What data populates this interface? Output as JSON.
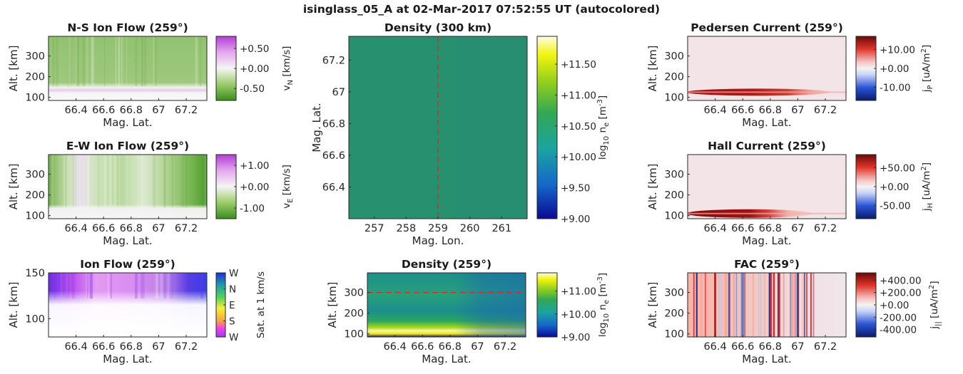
{
  "figure_title": "isinglass_05_A at 02-Mar-2017 07:52:55 UT (autocolored)",
  "chart_data": [
    {
      "id": "ns-ion-flow",
      "type": "heatmap",
      "title": "N-S Ion Flow (259°)",
      "xlabel": "Mag. Lat.",
      "ylabel": "Alt. [km]",
      "xlim": [
        66.2,
        67.35
      ],
      "ylim": [
        85,
        395
      ],
      "xticks": [
        66.4,
        66.6,
        66.8,
        67,
        67.2
      ],
      "xtick_labels": [
        "66.4",
        "66.6",
        "66.8",
        "67",
        "67.2"
      ],
      "yticks": [
        100,
        200,
        300
      ],
      "ytick_labels": [
        "100",
        "200",
        "300"
      ],
      "colorbar": {
        "label": "v_N [km/s]",
        "label_main": "v",
        "label_sub": "N",
        "label_unit": " [km/s]",
        "colormap": "PiYG",
        "limits": [
          -0.8,
          0.8
        ],
        "ticks": [
          0.5,
          0.0,
          -0.5
        ],
        "tick_labels": [
          "+0.50",
          "+0.00",
          "-0.50"
        ]
      }
    },
    {
      "id": "ew-ion-flow",
      "type": "heatmap",
      "title": "E-W Ion Flow (259°)",
      "xlabel": "Mag. Lat.",
      "ylabel": "Alt. [km]",
      "xlim": [
        66.2,
        67.35
      ],
      "ylim": [
        85,
        395
      ],
      "xticks": [
        66.4,
        66.6,
        66.8,
        67,
        67.2
      ],
      "xtick_labels": [
        "66.4",
        "66.6",
        "66.8",
        "67",
        "67.2"
      ],
      "yticks": [
        100,
        200,
        300
      ],
      "ytick_labels": [
        "100",
        "200",
        "300"
      ],
      "colorbar": {
        "label": "v_E [km/s]",
        "label_main": "v",
        "label_sub": "E",
        "label_unit": " [km/s]",
        "colormap": "PiYG",
        "limits": [
          -1.5,
          1.5
        ],
        "ticks": [
          1.0,
          0.0,
          -1.0
        ],
        "tick_labels": [
          "+1.00",
          "+0.00",
          "-1.00"
        ]
      }
    },
    {
      "id": "ion-flow",
      "type": "heatmap",
      "title": "Ion Flow (259°)",
      "xlabel": "Mag. Lat.",
      "ylabel": "Alt. [km]",
      "xlim": [
        66.2,
        67.35
      ],
      "ylim": [
        80,
        150
      ],
      "xticks": [
        66.4,
        66.6,
        66.8,
        67,
        67.2
      ],
      "xtick_labels": [
        "66.4",
        "66.6",
        "66.8",
        "67",
        "67.2"
      ],
      "yticks": [
        100,
        150
      ],
      "ytick_labels": [
        "100",
        "150"
      ],
      "colorbar": {
        "label": "Sat. at 1 km/s",
        "colormap": "direction-cyclic",
        "limits": [
          0,
          4
        ],
        "ticks": [
          4,
          3,
          2,
          1,
          0
        ],
        "tick_labels": [
          "W",
          "N",
          "E",
          "S",
          "W"
        ]
      }
    },
    {
      "id": "density-300km",
      "type": "heatmap",
      "title": "Density (300 km)",
      "xlabel": "Mag. Lon.",
      "ylabel": "Mag. Lat.",
      "xlim": [
        256.2,
        261.8
      ],
      "ylim": [
        66.2,
        67.35
      ],
      "xticks": [
        257,
        258,
        259,
        260,
        261
      ],
      "xtick_labels": [
        "257",
        "258",
        "259",
        "260",
        "261"
      ],
      "yticks": [
        66.4,
        66.6,
        66.8,
        67,
        67.2
      ],
      "ytick_labels": [
        "66.4",
        "66.6",
        "66.8",
        "67",
        "67.2"
      ],
      "reference_line": {
        "axis": "x",
        "value": 259,
        "style": "dashed",
        "color": "#d62728"
      },
      "colorbar": {
        "label": "log10 ne [m-3]",
        "label_main": "log",
        "label_sub": "10",
        "label_unit": " n",
        "label_sub2": "e",
        "label_unit2": " [m",
        "label_sup": "-3",
        "label_end": "]",
        "colormap": "viridis",
        "limits": [
          9.0,
          11.95
        ],
        "ticks": [
          11.5,
          11.0,
          10.5,
          10.0,
          9.5,
          9.0
        ],
        "tick_labels": [
          "+11.50",
          "+11.00",
          "+10.50",
          "+10.00",
          "+9.50",
          "+9.00"
        ]
      }
    },
    {
      "id": "density-259",
      "type": "heatmap",
      "title": "Density (259°)",
      "xlabel": "Mag. Lat.",
      "ylabel": "Alt. [km]",
      "xlim": [
        66.2,
        67.35
      ],
      "ylim": [
        85,
        395
      ],
      "xticks": [
        66.4,
        66.6,
        66.8,
        67,
        67.2
      ],
      "xtick_labels": [
        "66.4",
        "66.6",
        "66.8",
        "67",
        "67.2"
      ],
      "yticks": [
        100,
        200,
        300
      ],
      "ytick_labels": [
        "100",
        "200",
        "300"
      ],
      "reference_line": {
        "axis": "y",
        "value": 300,
        "style": "dashed",
        "color": "#d62728"
      },
      "colorbar": {
        "label": "log10 ne [m-3]",
        "label_main": "log",
        "label_sub": "10",
        "label_unit": " n",
        "label_sub2": "e",
        "label_unit2": " [m",
        "label_sup": "-3",
        "label_end": "]",
        "colormap": "viridis",
        "limits": [
          9.0,
          11.8
        ],
        "ticks": [
          11.0,
          10.0,
          9.0
        ],
        "tick_labels": [
          "+11.00",
          "+10.00",
          "+9.00"
        ]
      }
    },
    {
      "id": "pedersen-current",
      "type": "heatmap",
      "title": "Pedersen Current (259°)",
      "xlabel": "Mag. Lat.",
      "ylabel": "Alt. [km]",
      "xlim": [
        66.2,
        67.35
      ],
      "ylim": [
        85,
        395
      ],
      "xticks": [
        66.4,
        66.6,
        66.8,
        67,
        67.2
      ],
      "xtick_labels": [
        "66.4",
        "66.6",
        "66.8",
        "67",
        "67.2"
      ],
      "yticks": [
        100,
        200,
        300
      ],
      "ytick_labels": [
        "100",
        "200",
        "300"
      ],
      "colorbar": {
        "label": "jP [uA/m2]",
        "label_main": "j",
        "label_sub": "P",
        "label_unit": " [uA/m",
        "label_sup": "2",
        "label_end": "]",
        "colormap": "RdBu-diverging",
        "limits": [
          -17,
          17
        ],
        "ticks": [
          10,
          0,
          -10
        ],
        "tick_labels": [
          "+10.00",
          "+0.00",
          "-10.00"
        ]
      }
    },
    {
      "id": "hall-current",
      "type": "heatmap",
      "title": "Hall Current (259°)",
      "xlabel": "Mag. Lat.",
      "ylabel": "Alt. [km]",
      "xlim": [
        66.2,
        67.35
      ],
      "ylim": [
        85,
        395
      ],
      "xticks": [
        66.4,
        66.6,
        66.8,
        67,
        67.2
      ],
      "xtick_labels": [
        "66.4",
        "66.6",
        "66.8",
        "67",
        "67.2"
      ],
      "yticks": [
        100,
        200,
        300
      ],
      "ytick_labels": [
        "100",
        "200",
        "300"
      ],
      "colorbar": {
        "label": "jH [uA/m2]",
        "label_main": "j",
        "label_sub": "H",
        "label_unit": " [uA/m",
        "label_sup": "2",
        "label_end": "]",
        "colormap": "RdBu-diverging",
        "limits": [
          -85,
          85
        ],
        "ticks": [
          50,
          0,
          -50
        ],
        "tick_labels": [
          "+50.00",
          "+0.00",
          "-50.00"
        ]
      }
    },
    {
      "id": "fac",
      "type": "heatmap",
      "title": "FAC (259°)",
      "xlabel": "Mag. Lat.",
      "ylabel": "Alt. [km]",
      "xlim": [
        66.2,
        67.35
      ],
      "ylim": [
        85,
        395
      ],
      "xticks": [
        66.4,
        66.6,
        66.8,
        67,
        67.2
      ],
      "xtick_labels": [
        "66.4",
        "66.6",
        "66.8",
        "67",
        "67.2"
      ],
      "yticks": [
        100,
        200,
        300
      ],
      "ytick_labels": [
        "100",
        "200",
        "300"
      ],
      "colorbar": {
        "label": "j|| [uA/m2]",
        "label_main": "j",
        "label_sub": "||",
        "label_unit": " [uA/m",
        "label_sup": "2",
        "label_end": "]",
        "colormap": "RdBu-diverging",
        "limits": [
          -520,
          520
        ],
        "ticks": [
          400,
          200,
          0,
          -200,
          -400
        ],
        "tick_labels": [
          "+400.00",
          "+200.00",
          "+0.00",
          "-200.00",
          "-400.00"
        ]
      }
    }
  ]
}
